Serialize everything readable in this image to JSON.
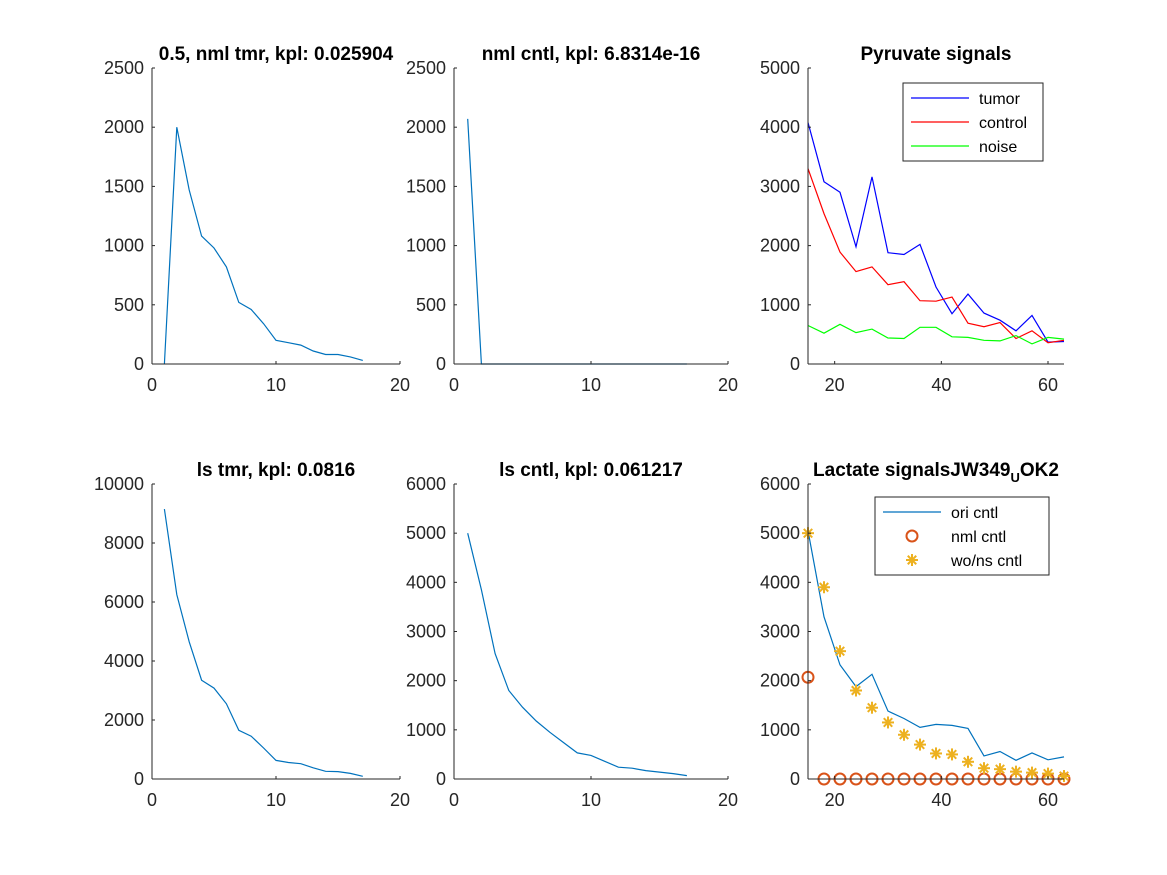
{
  "chart_data": [
    {
      "type": "line",
      "title": "0.5, nml tmr, kpl: 0.025904",
      "xlim": [
        0,
        20
      ],
      "ylim": [
        0,
        2500
      ],
      "xticks": [
        0,
        10,
        20
      ],
      "yticks": [
        0,
        500,
        1000,
        1500,
        2000,
        2500
      ],
      "series": [
        {
          "color": "#0072BD",
          "x": [
            1,
            2,
            3,
            4,
            5,
            6,
            7,
            8,
            9,
            10,
            11,
            12,
            13,
            14,
            15,
            16,
            17
          ],
          "y": [
            0,
            2000,
            1470,
            1080,
            980,
            820,
            520,
            460,
            340,
            200,
            180,
            160,
            110,
            80,
            80,
            60,
            30
          ]
        }
      ]
    },
    {
      "type": "line",
      "title": "nml cntl, kpl: 6.8314e-16",
      "xlim": [
        0,
        20
      ],
      "ylim": [
        0,
        2500
      ],
      "xticks": [
        0,
        10,
        20
      ],
      "yticks": [
        0,
        500,
        1000,
        1500,
        2000,
        2500
      ],
      "series": [
        {
          "color": "#0072BD",
          "x": [
            1,
            2,
            3,
            4,
            5,
            6,
            7,
            8,
            9,
            10,
            11,
            12,
            13,
            14,
            15,
            16,
            17
          ],
          "y": [
            2070,
            0,
            0,
            0,
            0,
            0,
            0,
            0,
            0,
            0,
            0,
            0,
            0,
            0,
            0,
            0,
            0
          ]
        }
      ]
    },
    {
      "type": "line",
      "title": "Pyruvate signals",
      "xlim": [
        15,
        63
      ],
      "ylim": [
        0,
        5000
      ],
      "xticks": [
        20,
        40,
        60
      ],
      "yticks": [
        0,
        1000,
        2000,
        3000,
        4000,
        5000
      ],
      "legend": {
        "position": "top-right"
      },
      "series": [
        {
          "name": "tumor",
          "color": "#0000FF",
          "x": [
            15,
            18,
            21,
            24,
            27,
            30,
            33,
            36,
            39,
            42,
            45,
            48,
            51,
            54,
            57,
            60,
            63
          ],
          "y": [
            4080,
            3080,
            2900,
            1980,
            3160,
            1880,
            1850,
            2020,
            1300,
            850,
            1180,
            860,
            740,
            560,
            820,
            370,
            380
          ]
        },
        {
          "name": "control",
          "color": "#FF0000",
          "x": [
            15,
            18,
            21,
            24,
            27,
            30,
            33,
            36,
            39,
            42,
            45,
            48,
            51,
            54,
            57,
            60,
            63
          ],
          "y": [
            3300,
            2540,
            1890,
            1560,
            1640,
            1340,
            1390,
            1070,
            1060,
            1130,
            690,
            630,
            700,
            430,
            560,
            360,
            400
          ]
        },
        {
          "name": "noise",
          "color": "#00FF00",
          "x": [
            15,
            18,
            21,
            24,
            27,
            30,
            33,
            36,
            39,
            42,
            45,
            48,
            51,
            54,
            57,
            60,
            63
          ],
          "y": [
            650,
            520,
            670,
            530,
            590,
            440,
            430,
            620,
            620,
            460,
            450,
            400,
            390,
            480,
            340,
            450,
            420
          ]
        }
      ]
    },
    {
      "type": "line",
      "title": "ls tmr, kpl: 0.0816",
      "xlim": [
        0,
        20
      ],
      "ylim": [
        0,
        10000
      ],
      "xticks": [
        0,
        10,
        20
      ],
      "yticks": [
        0,
        2000,
        4000,
        6000,
        8000,
        10000
      ],
      "series": [
        {
          "color": "#0072BD",
          "x": [
            1,
            2,
            3,
            4,
            5,
            6,
            7,
            8,
            9,
            10,
            11,
            12,
            13,
            14,
            15,
            16,
            17
          ],
          "y": [
            9150,
            6250,
            4650,
            3350,
            3080,
            2550,
            1650,
            1450,
            1050,
            630,
            560,
            520,
            380,
            260,
            250,
            190,
            90
          ]
        }
      ]
    },
    {
      "type": "line",
      "title": "ls cntl, kpl: 0.061217",
      "xlim": [
        0,
        20
      ],
      "ylim": [
        0,
        6000
      ],
      "xticks": [
        0,
        10,
        20
      ],
      "yticks": [
        0,
        1000,
        2000,
        3000,
        4000,
        5000,
        6000
      ],
      "series": [
        {
          "color": "#0072BD",
          "x": [
            1,
            2,
            3,
            4,
            5,
            6,
            7,
            8,
            9,
            10,
            11,
            12,
            13,
            14,
            15,
            16,
            17
          ],
          "y": [
            5000,
            3850,
            2550,
            1800,
            1460,
            1180,
            950,
            740,
            530,
            480,
            360,
            240,
            220,
            170,
            140,
            110,
            70
          ]
        }
      ]
    },
    {
      "type": "line",
      "title": "Lactate signalsJW349",
      "title_subscript": "U",
      "title_suffix": "OK2",
      "xlim": [
        15,
        63
      ],
      "ylim": [
        0,
        6000
      ],
      "xticks": [
        20,
        40,
        60
      ],
      "yticks": [
        0,
        1000,
        2000,
        3000,
        4000,
        5000,
        6000
      ],
      "legend": {
        "position": "top-right"
      },
      "series": [
        {
          "name": "ori cntl",
          "style": "line",
          "color": "#0072BD",
          "x": [
            15,
            18,
            21,
            24,
            27,
            30,
            33,
            36,
            39,
            42,
            45,
            48,
            51,
            54,
            57,
            60,
            63
          ],
          "y": [
            5050,
            3300,
            2320,
            1880,
            2130,
            1380,
            1230,
            1050,
            1110,
            1090,
            1030,
            470,
            560,
            380,
            530,
            390,
            450
          ]
        },
        {
          "name": "nml cntl",
          "style": "circle",
          "color": "#D95319",
          "x": [
            15,
            18,
            21,
            24,
            27,
            30,
            33,
            36,
            39,
            42,
            45,
            48,
            51,
            54,
            57,
            60,
            63
          ],
          "y": [
            2070,
            0,
            0,
            0,
            0,
            0,
            0,
            0,
            0,
            0,
            0,
            0,
            0,
            0,
            0,
            0,
            0
          ]
        },
        {
          "name": "wo/ns cntl",
          "style": "asterisk",
          "color": "#EDB120",
          "x": [
            15,
            18,
            21,
            24,
            27,
            30,
            33,
            36,
            39,
            42,
            45,
            48,
            51,
            54,
            57,
            60,
            63
          ],
          "y": [
            5000,
            3900,
            2600,
            1800,
            1450,
            1150,
            900,
            700,
            520,
            500,
            350,
            220,
            200,
            150,
            130,
            110,
            60
          ]
        }
      ]
    }
  ]
}
